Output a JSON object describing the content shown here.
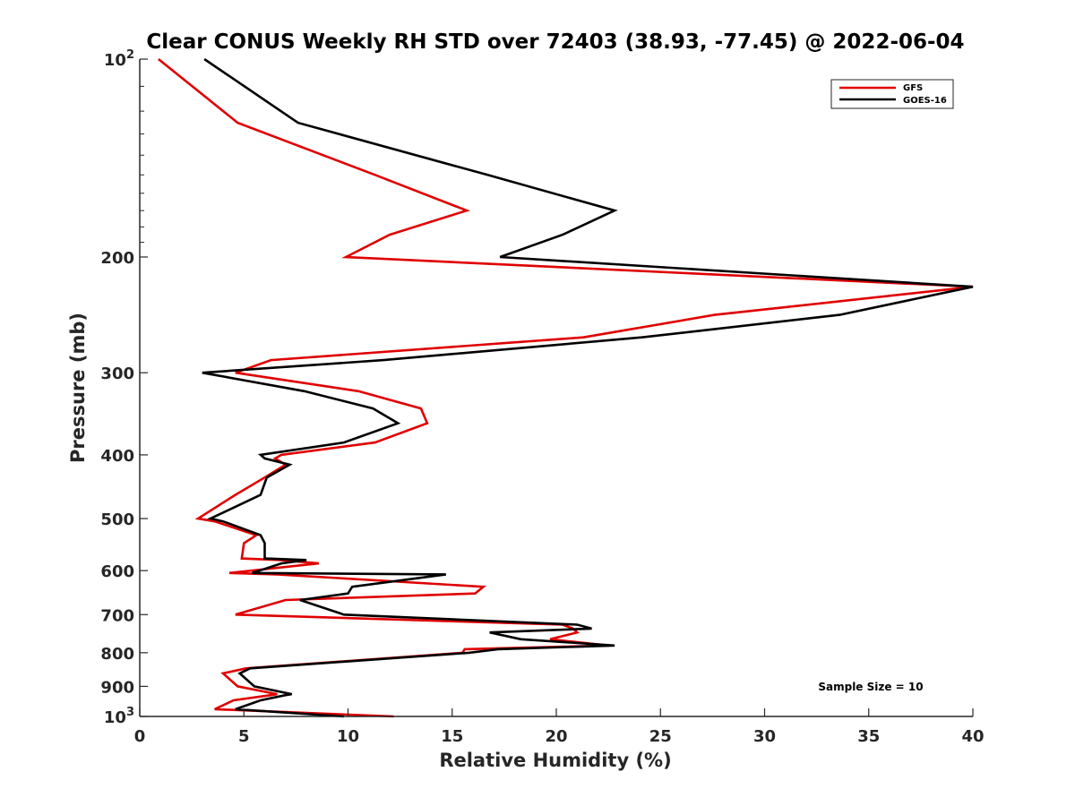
{
  "chart_data": {
    "type": "line",
    "title": "Clear CONUS Weekly RH STD over 72403 (38.93, -77.45) @ 2022-06-04",
    "xlabel": "Relative Humidity (%)",
    "ylabel": "Pressure (mb)",
    "xlim": [
      0,
      40
    ],
    "ylim": [
      100,
      1000
    ],
    "y_scale": "log",
    "y_reversed": true,
    "grid": false,
    "legend_position": "top-right",
    "x_ticks": [
      "0",
      "5",
      "10",
      "15",
      "20",
      "25",
      "30",
      "35",
      "40"
    ],
    "x_tick_values": [
      0,
      5,
      10,
      15,
      20,
      25,
      30,
      35,
      40
    ],
    "y_ticks": [
      {
        "value": 100,
        "label": "10",
        "sup": "2"
      },
      {
        "value": 200,
        "label": "200",
        "sup": ""
      },
      {
        "value": 300,
        "label": "300",
        "sup": ""
      },
      {
        "value": 400,
        "label": "400",
        "sup": ""
      },
      {
        "value": 500,
        "label": "500",
        "sup": ""
      },
      {
        "value": 600,
        "label": "600",
        "sup": ""
      },
      {
        "value": 700,
        "label": "700",
        "sup": ""
      },
      {
        "value": 800,
        "label": "800",
        "sup": ""
      },
      {
        "value": 900,
        "label": "900",
        "sup": ""
      },
      {
        "value": 1000,
        "label": "10",
        "sup": "3"
      }
    ],
    "annotation": "Sample Size = 10",
    "series": [
      {
        "name": "GFS",
        "color": "#e00000",
        "points": [
          [
            0.9,
            100
          ],
          [
            4.7,
            125
          ],
          [
            11.3,
            150
          ],
          [
            15.7,
            170
          ],
          [
            12.0,
            185
          ],
          [
            9.9,
            200
          ],
          [
            40.0,
            222
          ],
          [
            27.6,
            245
          ],
          [
            21.3,
            265
          ],
          [
            6.3,
            287
          ],
          [
            4.6,
            300
          ],
          [
            10.5,
            320
          ],
          [
            13.5,
            340
          ],
          [
            13.8,
            358
          ],
          [
            11.3,
            383
          ],
          [
            6.8,
            400
          ],
          [
            6.5,
            405
          ],
          [
            7.0,
            414
          ],
          [
            6.0,
            433
          ],
          [
            4.6,
            460
          ],
          [
            2.8,
            500
          ],
          [
            3.6,
            505
          ],
          [
            5.6,
            530
          ],
          [
            5.0,
            545
          ],
          [
            4.9,
            575
          ],
          [
            6.7,
            578
          ],
          [
            8.6,
            585
          ],
          [
            4.3,
            605
          ],
          [
            6.6,
            608
          ],
          [
            16.5,
            635
          ],
          [
            16.1,
            650
          ],
          [
            7.0,
            665
          ],
          [
            4.6,
            700
          ],
          [
            20.3,
            725
          ],
          [
            20.8,
            735
          ],
          [
            21.0,
            745
          ],
          [
            19.7,
            763
          ],
          [
            22.5,
            780
          ],
          [
            15.6,
            790
          ],
          [
            15.5,
            800
          ],
          [
            5.1,
            845
          ],
          [
            4.0,
            860
          ],
          [
            4.7,
            900
          ],
          [
            6.6,
            925
          ],
          [
            6.3,
            928
          ],
          [
            4.5,
            945
          ],
          [
            3.6,
            975
          ],
          [
            12.2,
            1000
          ]
        ]
      },
      {
        "name": "GOES-16",
        "color": "#000000",
        "points": [
          [
            3.1,
            100
          ],
          [
            7.6,
            125
          ],
          [
            16.7,
            150
          ],
          [
            22.8,
            170
          ],
          [
            20.3,
            185
          ],
          [
            17.3,
            200
          ],
          [
            40.0,
            222
          ],
          [
            33.6,
            245
          ],
          [
            24.1,
            265
          ],
          [
            11.7,
            287
          ],
          [
            3.0,
            300
          ],
          [
            7.9,
            320
          ],
          [
            11.2,
            340
          ],
          [
            12.4,
            358
          ],
          [
            9.8,
            383
          ],
          [
            5.8,
            400
          ],
          [
            6.0,
            405
          ],
          [
            7.2,
            414
          ],
          [
            6.1,
            433
          ],
          [
            5.8,
            460
          ],
          [
            3.4,
            500
          ],
          [
            4.0,
            505
          ],
          [
            5.8,
            530
          ],
          [
            6.0,
            545
          ],
          [
            6.0,
            575
          ],
          [
            8.0,
            578
          ],
          [
            6.8,
            585
          ],
          [
            5.4,
            605
          ],
          [
            14.7,
            608
          ],
          [
            10.2,
            635
          ],
          [
            10.0,
            650
          ],
          [
            7.7,
            665
          ],
          [
            9.8,
            700
          ],
          [
            21.0,
            725
          ],
          [
            21.7,
            735
          ],
          [
            16.8,
            745
          ],
          [
            18.3,
            763
          ],
          [
            22.8,
            780
          ],
          [
            17.2,
            790
          ],
          [
            15.8,
            800
          ],
          [
            5.3,
            845
          ],
          [
            4.8,
            860
          ],
          [
            5.5,
            900
          ],
          [
            7.3,
            925
          ],
          [
            7.0,
            928
          ],
          [
            5.8,
            945
          ],
          [
            4.6,
            975
          ],
          [
            9.8,
            1000
          ]
        ]
      }
    ]
  }
}
